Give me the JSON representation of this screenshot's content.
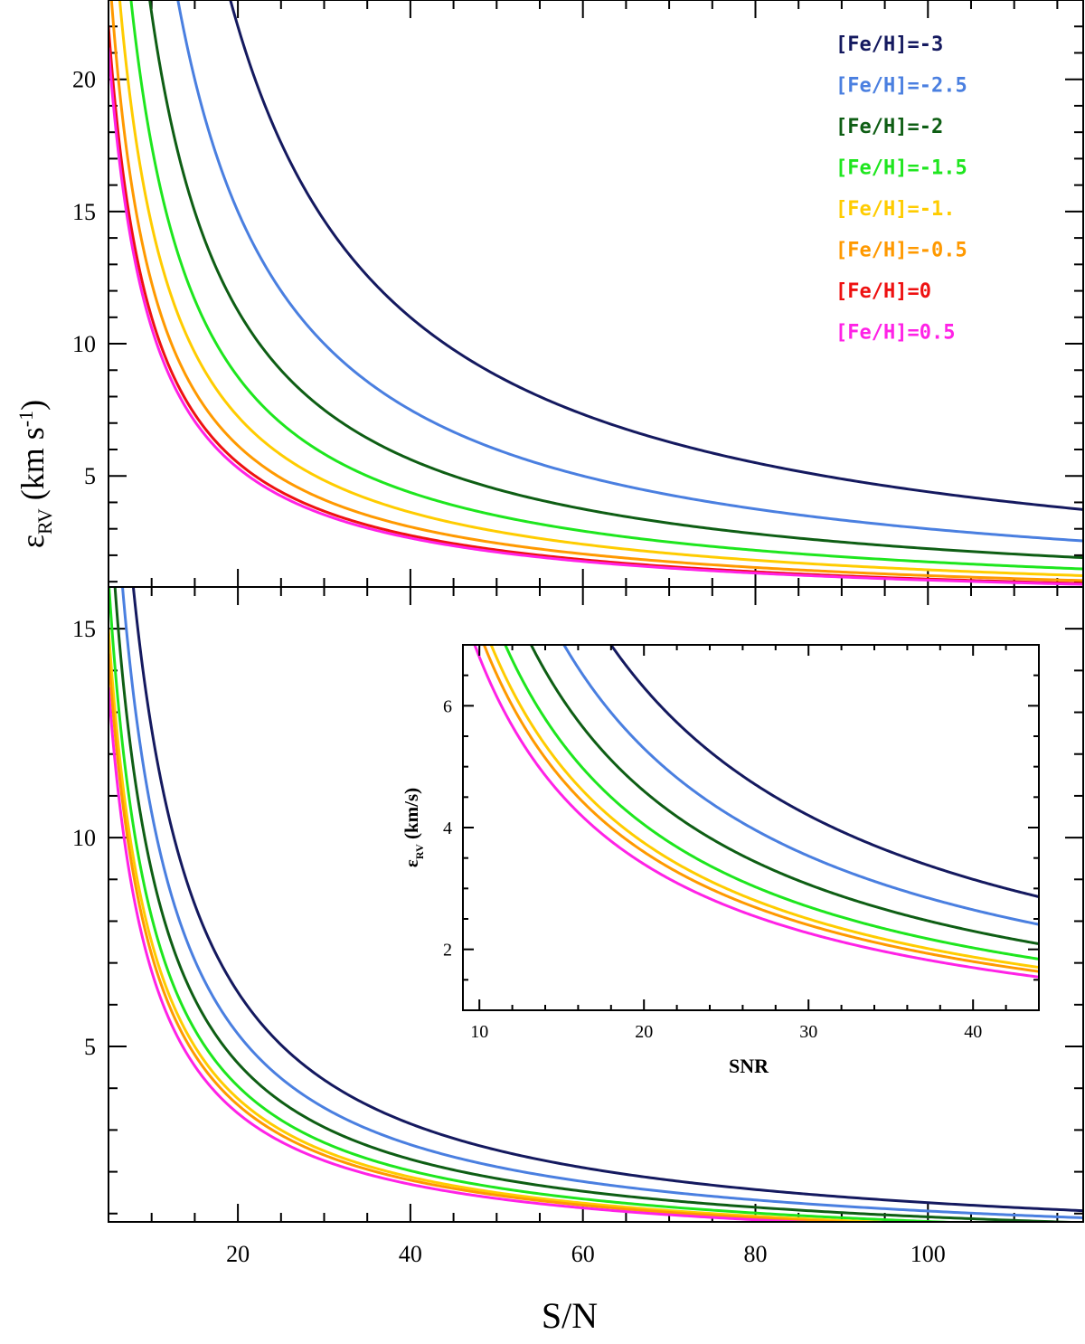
{
  "chart_data": [
    {
      "name": "top-panel",
      "type": "line",
      "xlim": [
        5,
        118
      ],
      "ylim": [
        0.8,
        23
      ],
      "x_ticks": [
        20,
        40,
        60,
        80,
        100
      ],
      "y_ticks": [
        5,
        10,
        15,
        20
      ],
      "x_tick_labels": [],
      "y_tick_labels": [
        "5",
        "10",
        "15",
        "20"
      ],
      "legend_position": "top-right",
      "model": "eps = K / (S/N)",
      "sample_x": [
        10,
        20,
        40,
        60,
        100
      ],
      "series": [
        {
          "name": "[Fe/H]=-3",
          "color": "#14195f",
          "K": 440
        },
        {
          "name": "[Fe/H]=-2.5",
          "color": "#4a7fe0",
          "K": 300
        },
        {
          "name": "[Fe/H]=-2",
          "color": "#0e5e14",
          "K": 225
        },
        {
          "name": "[Fe/H]=-1.5",
          "color": "#1ee61e",
          "K": 175
        },
        {
          "name": "[Fe/H]=-1.",
          "color": "#ffcc00",
          "K": 145
        },
        {
          "name": "[Fe/H]=-0.5",
          "color": "#ff9900",
          "K": 123
        },
        {
          "name": "[Fe/H]=0",
          "color": "#ee1111",
          "K": 110
        },
        {
          "name": "[Fe/H]=0.5",
          "color": "#ff22e6",
          "K": 106
        }
      ]
    },
    {
      "name": "bottom-panel",
      "type": "line",
      "xlim": [
        5,
        118
      ],
      "ylim": [
        0.8,
        16
      ],
      "x_ticks": [
        20,
        40,
        60,
        80,
        100
      ],
      "y_ticks": [
        5,
        10,
        15
      ],
      "x_tick_labels": [
        "20",
        "40",
        "60",
        "80",
        "100"
      ],
      "y_tick_labels": [
        "5",
        "10",
        "15"
      ],
      "model": "eps = K / (S/N)",
      "series": [
        {
          "name": "[Fe/H]=-3",
          "color": "#14195f",
          "K": 126
        },
        {
          "name": "[Fe/H]=-2.5",
          "color": "#4a7fe0",
          "K": 106
        },
        {
          "name": "[Fe/H]=-2",
          "color": "#0e5e14",
          "K": 92
        },
        {
          "name": "[Fe/H]=-1.5",
          "color": "#1ee61e",
          "K": 81
        },
        {
          "name": "[Fe/H]=-1.",
          "color": "#ffcc00",
          "K": 75
        },
        {
          "name": "[Fe/H]=-0.5",
          "color": "#ff9900",
          "K": 72
        },
        {
          "name": "[Fe/H]=0.5",
          "color": "#ff22e6",
          "K": 68
        }
      ]
    },
    {
      "name": "inset",
      "type": "line",
      "xlim": [
        9,
        44
      ],
      "ylim": [
        1,
        7
      ],
      "x_ticks": [
        10,
        20,
        30,
        40
      ],
      "y_ticks": [
        2,
        4,
        6
      ],
      "x_tick_labels": [
        "10",
        "20",
        "30",
        "40"
      ],
      "y_tick_labels": [
        "2",
        "4",
        "6"
      ],
      "xlabel": "SNR",
      "ylabel_symbol": "ε",
      "ylabel_sub": "RV",
      "ylabel_unit": " (km/s)",
      "model": "eps = K / SNR",
      "series": [
        {
          "name": "[Fe/H]=-3",
          "color": "#14195f",
          "K": 126
        },
        {
          "name": "[Fe/H]=-2.5",
          "color": "#4a7fe0",
          "K": 106
        },
        {
          "name": "[Fe/H]=-2",
          "color": "#0e5e14",
          "K": 92
        },
        {
          "name": "[Fe/H]=-1.5",
          "color": "#1ee61e",
          "K": 81
        },
        {
          "name": "[Fe/H]=-1.",
          "color": "#ffcc00",
          "K": 75
        },
        {
          "name": "[Fe/H]=-0.5",
          "color": "#ff9900",
          "K": 72
        },
        {
          "name": "[Fe/H]=0.5",
          "color": "#ff22e6",
          "K": 68
        }
      ]
    }
  ],
  "labels": {
    "xlabel": "S/N",
    "ylabel_symbol": "ε",
    "ylabel_sub": "RV",
    "ylabel_unit": " (km s",
    "ylabel_exp": "-1",
    "ylabel_close": ")"
  }
}
